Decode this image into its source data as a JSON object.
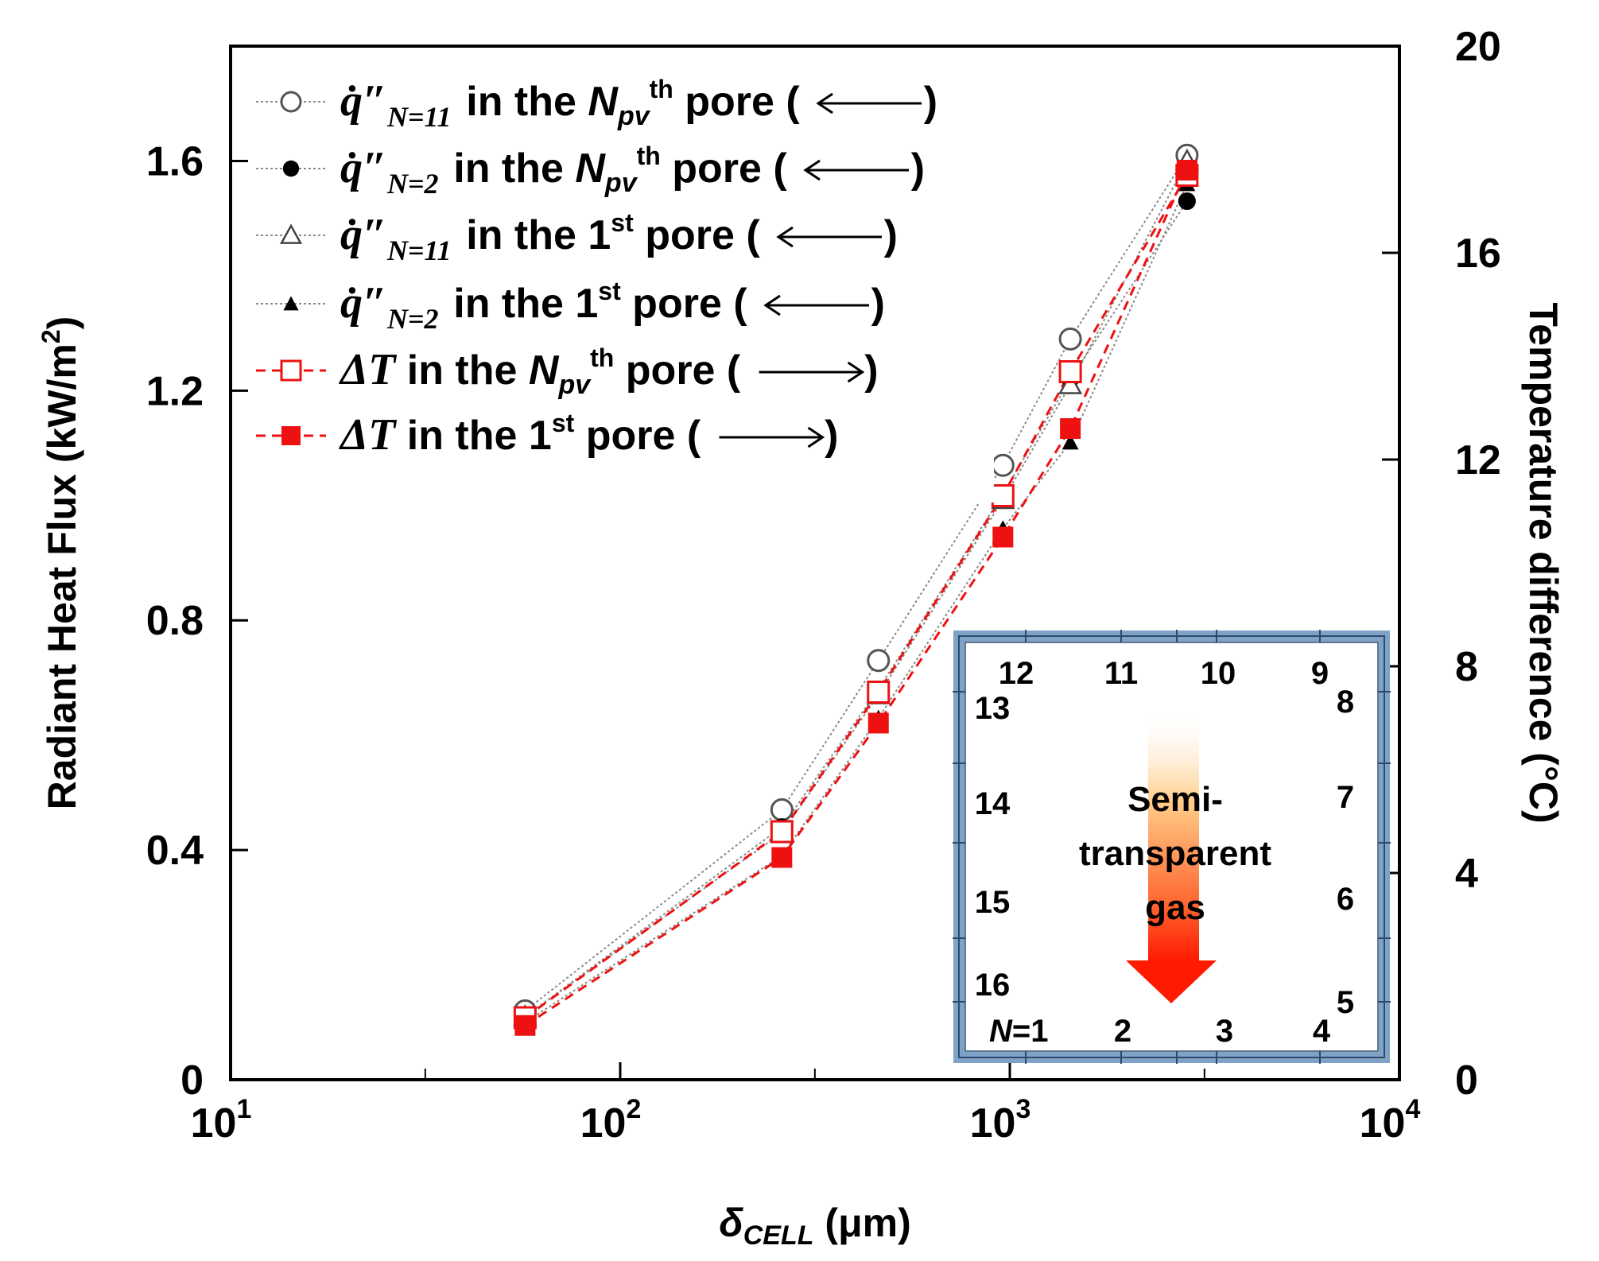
{
  "chart_data": {
    "type": "line",
    "x_scale": "log",
    "xlim": [
      10,
      10000
    ],
    "x_ticks": [
      {
        "value": 10,
        "label": "10",
        "exp": "1"
      },
      {
        "value": 100,
        "label": "10",
        "exp": "2"
      },
      {
        "value": 1000,
        "label": "10",
        "exp": "3"
      },
      {
        "value": 10000,
        "label": "10",
        "exp": "4"
      }
    ],
    "xlabel": {
      "main": "δ",
      "sub": "CELL",
      "unit": " (μm)"
    },
    "ylim_left": [
      0,
      1.8
    ],
    "y_ticks_left": [
      {
        "value": 0,
        "label": "0"
      },
      {
        "value": 0.4,
        "label": "0.4"
      },
      {
        "value": 0.8,
        "label": "0.8"
      },
      {
        "value": 1.2,
        "label": "1.2"
      },
      {
        "value": 1.6,
        "label": "1.6"
      }
    ],
    "ylabel_left": {
      "main": "Radiant Heat Flux (kW/m",
      "sup": "2",
      "end": ")"
    },
    "ylim_right": [
      0,
      20
    ],
    "y_ticks_right": [
      {
        "value": 0,
        "label": "0"
      },
      {
        "value": 4,
        "label": "4"
      },
      {
        "value": 8,
        "label": "8"
      },
      {
        "value": 12,
        "label": "12"
      },
      {
        "value": 16,
        "label": "16"
      },
      {
        "value": 20,
        "label": "20"
      }
    ],
    "ylabel_right": "Temperature difference (°C)",
    "x": [
      57,
      260,
      460,
      960,
      1430,
      2850
    ],
    "series": [
      {
        "name": "q_N11_Npv",
        "axis": "left",
        "marker": "circle-open",
        "line": "dotted-gray",
        "values": [
          0.12,
          0.47,
          0.73,
          1.07,
          1.29,
          1.61
        ],
        "legend": {
          "symbol": "q̇″",
          "sub": "N=11",
          "text": " in the ",
          "italic": "N",
          "isub": "pv",
          "sup": "th",
          "after": " pore (",
          "arrow": "left",
          "close": ")"
        }
      },
      {
        "name": "q_N2_Npv",
        "axis": "left",
        "marker": "circle-filled",
        "line": "dotted-gray",
        "values": [
          0.11,
          0.44,
          0.68,
          1.02,
          1.22,
          1.53
        ],
        "legend": {
          "symbol": "q̇″",
          "sub": "N=2",
          "text": " in the ",
          "italic": "N",
          "isub": "pv",
          "sup": "th",
          "after": " pore (",
          "arrow": "left",
          "close": ")"
        }
      },
      {
        "name": "q_N11_1st",
        "axis": "left",
        "marker": "triangle-open",
        "line": "dotted-gray",
        "values": [
          0.11,
          0.43,
          0.67,
          1.01,
          1.21,
          1.6
        ],
        "legend": {
          "symbol": "q̇″",
          "sub": "N=11",
          "text": " in the 1",
          "italic": "",
          "isub": "",
          "sup": "st",
          "after": " pore (",
          "arrow": "left",
          "close": ")"
        }
      },
      {
        "name": "q_N2_1st",
        "axis": "left",
        "marker": "triangle-filled",
        "line": "dotted-gray",
        "values": [
          0.1,
          0.39,
          0.63,
          0.96,
          1.11,
          1.56
        ],
        "legend": {
          "symbol": "q̇″",
          "sub": "N=2",
          "text": " in the 1",
          "italic": "",
          "isub": "",
          "sup": "st",
          "after": " pore (",
          "arrow": "left",
          "close": ")"
        }
      },
      {
        "name": "dT_Npv",
        "axis": "right",
        "marker": "square-open",
        "line": "dashed-red",
        "values": [
          1.2,
          4.8,
          7.5,
          11.3,
          13.7,
          17.5
        ],
        "legend": {
          "symbol": "ΔT",
          "sub": "",
          "text": " in the ",
          "italic": "N",
          "isub": "pv",
          "sup": "th",
          "after": " pore (",
          "arrow": "right",
          "close": ")"
        }
      },
      {
        "name": "dT_1st",
        "axis": "right",
        "marker": "square-filled",
        "line": "dashed-red",
        "values": [
          1.05,
          4.3,
          6.9,
          10.5,
          12.6,
          17.6
        ],
        "legend": {
          "symbol": "ΔT",
          "sub": "",
          "text": " in the 1",
          "italic": "",
          "isub": "",
          "sup": "st",
          "after": " pore (",
          "arrow": "right",
          "close": ")"
        }
      }
    ],
    "colors": {
      "gray_line": "#8a8a8a",
      "red": "#ee1111",
      "black": "#000000",
      "inset_frame": "#7fa3c7",
      "inset_frame_light": "#b9cfe4"
    },
    "inset": {
      "labels": [
        "12",
        "11",
        "10",
        "9",
        "13",
        "8",
        "14",
        "7",
        "15",
        "6",
        "16",
        "5",
        "N",
        "=1",
        "2",
        "3",
        "4"
      ],
      "gas_lines": [
        "Semi-",
        "transparent",
        "gas"
      ]
    }
  }
}
